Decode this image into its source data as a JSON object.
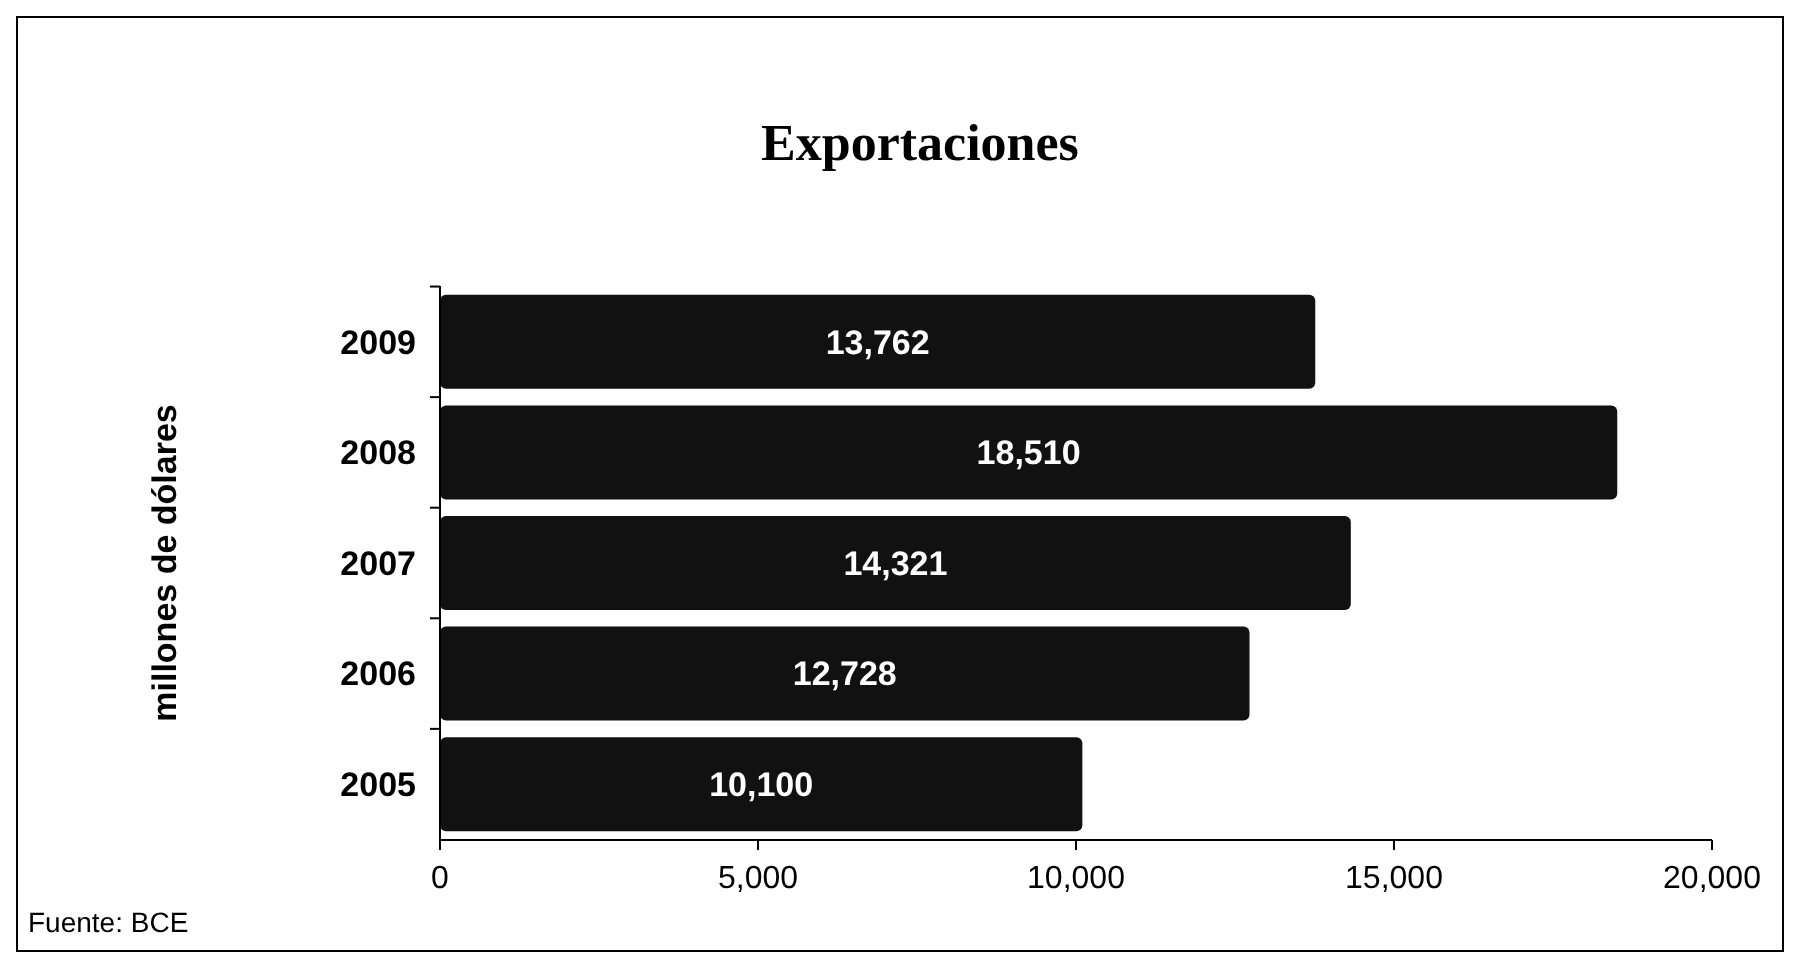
{
  "chart_data": {
    "type": "bar",
    "orientation": "horizontal",
    "title": "Exportaciones",
    "ylabel": "millones de dólares",
    "categories": [
      "2009",
      "2008",
      "2007",
      "2006",
      "2005"
    ],
    "values": [
      13762,
      18510,
      14321,
      12728,
      10100
    ],
    "value_labels": [
      "13,762",
      "18,510",
      "14,321",
      "12,728",
      "10,100"
    ],
    "color": "#111111",
    "xlim": [
      0,
      20000
    ],
    "xticks": [
      0,
      {
        "value": 5000,
        "label": "5,000"
      },
      {
        "value": 10000,
        "label": "10,000"
      },
      {
        "value": 15000,
        "label": "15,000"
      },
      {
        "value": 20000,
        "label": "20,000"
      }
    ],
    "grid": false,
    "annotations": [
      "Fuente: BCE"
    ]
  }
}
